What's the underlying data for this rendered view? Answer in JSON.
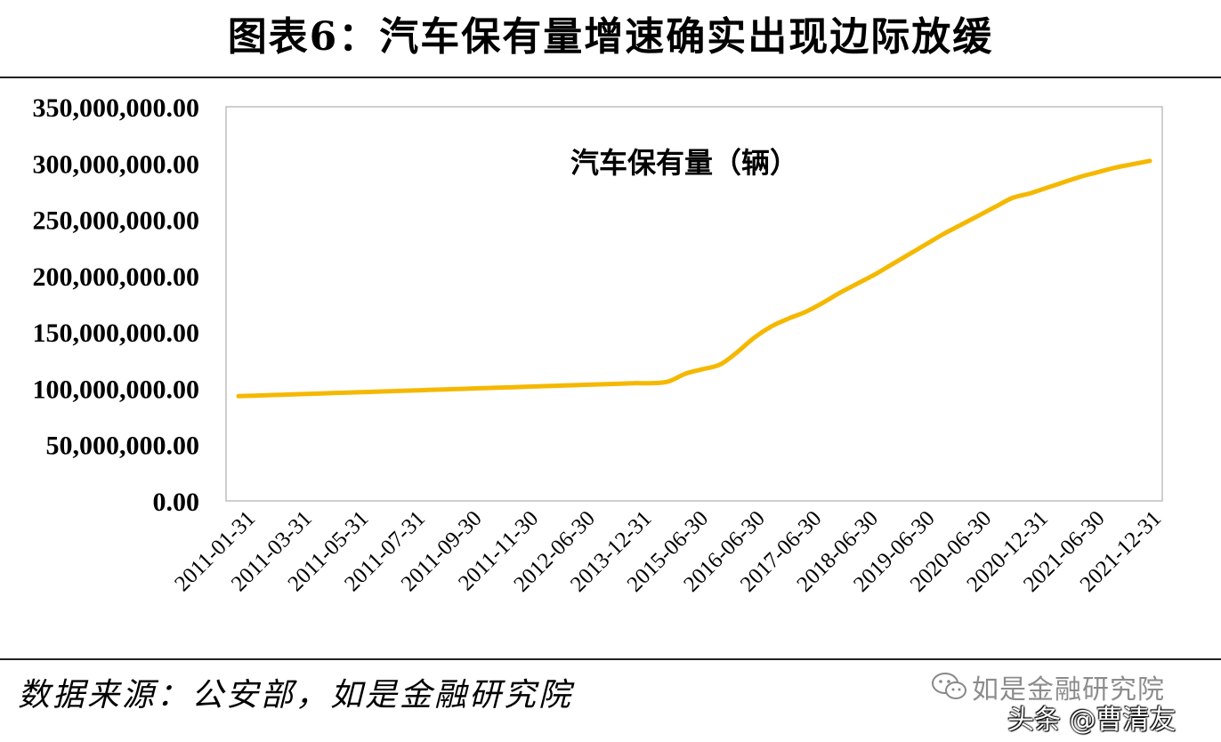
{
  "header": {
    "title": "图表6：汽车保有量增速确实出现边际放缓"
  },
  "footer": {
    "source": "数据来源：公安部，如是金融研究院"
  },
  "watermark": {
    "icon": "wechat-icon",
    "text": "如是金融研究院",
    "handle": "头条 @曹清友"
  },
  "colors": {
    "line": "#F5B800",
    "plot_border": "#BFBFBF",
    "rule": "#222222"
  },
  "chart_data": {
    "type": "line",
    "title": "汽车保有量（辆）",
    "xlabel": "",
    "ylabel": "",
    "ylim": [
      0,
      350000000
    ],
    "yticks": [
      "0.00",
      "50,000,000.00",
      "100,000,000.00",
      "150,000,000.00",
      "200,000,000.00",
      "250,000,000.00",
      "300,000,000.00",
      "350,000,000.00"
    ],
    "x_tick_labels": [
      "2011-01-31",
      "2011-03-31",
      "2011-05-31",
      "2011-07-31",
      "2011-09-30",
      "2011-11-30",
      "2012-06-30",
      "2013-12-31",
      "2015-06-30",
      "2016-06-30",
      "2017-06-30",
      "2018-06-30",
      "2019-06-30",
      "2020-06-30",
      "2020-12-31",
      "2021-06-30",
      "2021-12-31"
    ],
    "grid": false,
    "legend": "none",
    "series": [
      {
        "values": [
          93000000,
          93500000,
          94000000,
          94500000,
          95000000,
          95500000,
          96000000,
          96500000,
          97000000,
          97500000,
          98000000,
          98500000,
          99000000,
          99500000,
          100000000,
          100500000,
          101000000,
          101500000,
          102000000,
          102500000,
          103000000,
          103500000,
          104000000,
          104500000,
          104500000,
          106000000,
          113000000,
          117000000,
          121000000,
          132000000,
          145000000,
          155000000,
          162000000,
          168000000,
          176000000,
          185000000,
          193000000,
          201000000,
          210000000,
          219000000,
          228000000,
          237000000,
          245000000,
          253000000,
          261000000,
          269000000,
          273000000,
          278000000,
          283000000,
          288000000,
          292000000,
          296000000,
          299000000,
          302000000
        ]
      }
    ]
  }
}
